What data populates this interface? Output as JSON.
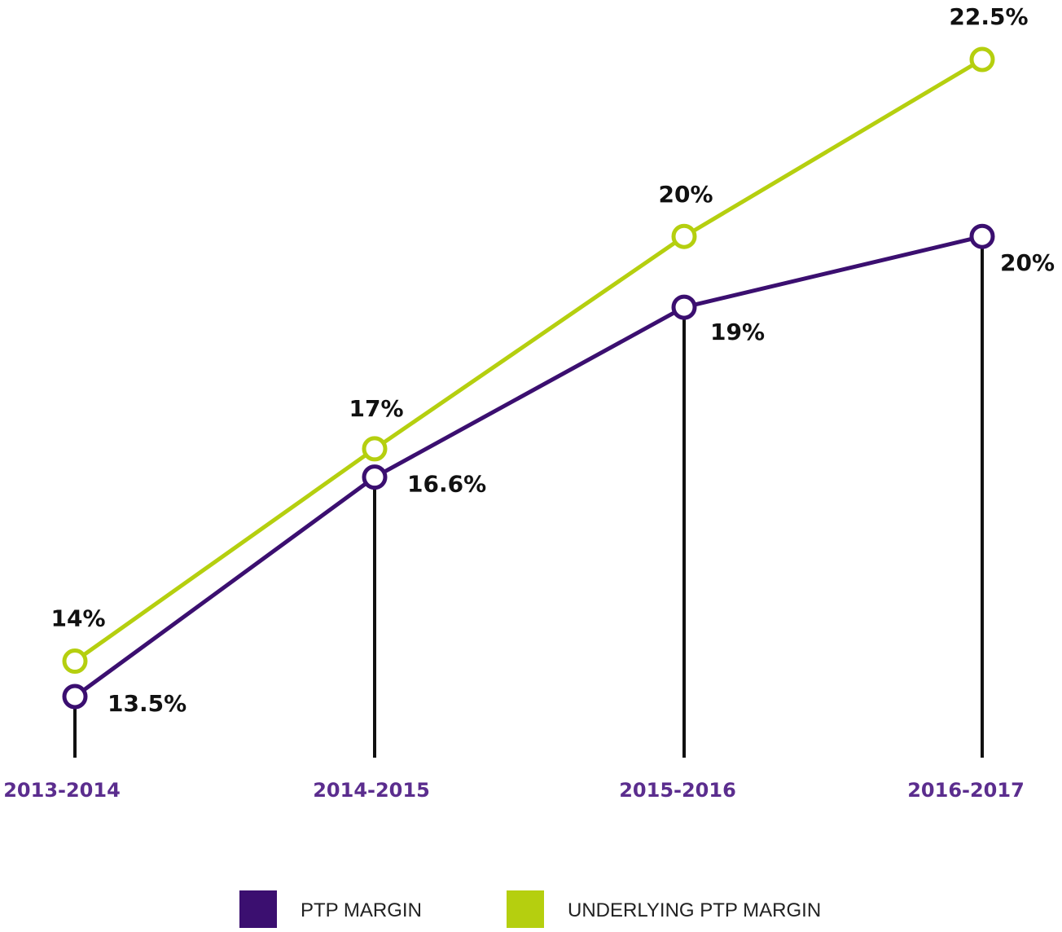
{
  "chart_data": {
    "type": "line",
    "categories": [
      "2013-2014",
      "2014-2015",
      "2015-2016",
      "2016-2017"
    ],
    "series": [
      {
        "name": "PTP MARGIN",
        "color": "#3b0f70",
        "values": [
          13.5,
          16.6,
          19,
          20
        ],
        "labels": [
          "13.5%",
          "16.6%",
          "19%",
          "20%"
        ]
      },
      {
        "name": "UNDERLYING PTP MARGIN",
        "color": "#b5cf0f",
        "values": [
          14,
          17,
          20,
          22.5
        ],
        "labels": [
          "14%",
          "17%",
          "20%",
          "22.5%"
        ]
      }
    ],
    "drop_lines_color": "#111111",
    "category_label_color": "#5b2d8e",
    "grid": false,
    "legend_position": "bottom-center",
    "ylim": [
      11.5,
      23.5
    ],
    "title": "",
    "xlabel": "",
    "ylabel": ""
  }
}
